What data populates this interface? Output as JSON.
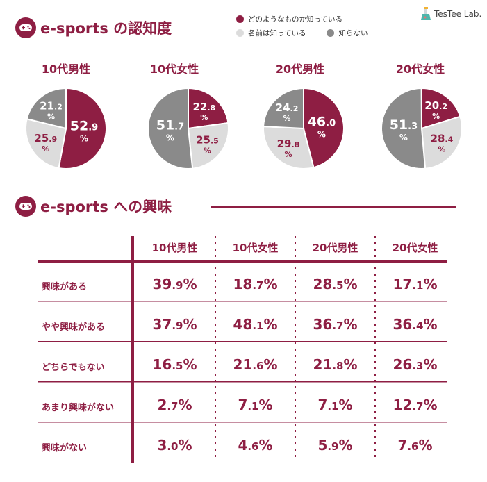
{
  "section1": {
    "title": "e-sports の認知度"
  },
  "legend": [
    {
      "label": "どのようなものか知っている",
      "color": "#8e1e43"
    },
    {
      "label": "名前は知っている",
      "color": "#dcdcdc"
    },
    {
      "label": "知らない",
      "color": "#8a8a8a"
    }
  ],
  "logo": {
    "text": "TesTee Lab."
  },
  "section2": {
    "title": "e-sports への興味"
  },
  "chart_data": [
    {
      "type": "pie",
      "title": "10代男性",
      "slices": [
        {
          "label": "どのようなものか知っている",
          "value": 52.9,
          "int": "52",
          "dec": ".9"
        },
        {
          "label": "名前は知っている",
          "value": 25.9,
          "int": "25",
          "dec": ".9"
        },
        {
          "label": "知らない",
          "value": 21.2,
          "int": "21",
          "dec": ".2"
        }
      ]
    },
    {
      "type": "pie",
      "title": "10代女性",
      "slices": [
        {
          "label": "どのようなものか知っている",
          "value": 22.8,
          "int": "22",
          "dec": ".8"
        },
        {
          "label": "名前は知っている",
          "value": 25.5,
          "int": "25",
          "dec": ".5"
        },
        {
          "label": "知らない",
          "value": 51.7,
          "int": "51",
          "dec": ".7"
        }
      ]
    },
    {
      "type": "pie",
      "title": "20代男性",
      "slices": [
        {
          "label": "どのようなものか知っている",
          "value": 46.0,
          "int": "46",
          "dec": ".0"
        },
        {
          "label": "名前は知っている",
          "value": 29.8,
          "int": "29",
          "dec": ".8"
        },
        {
          "label": "知らない",
          "value": 24.2,
          "int": "24",
          "dec": ".2"
        }
      ]
    },
    {
      "type": "pie",
      "title": "20代女性",
      "slices": [
        {
          "label": "どのようなものか知っている",
          "value": 20.2,
          "int": "20",
          "dec": ".2"
        },
        {
          "label": "名前は知っている",
          "value": 28.4,
          "int": "28",
          "dec": ".4"
        },
        {
          "label": "知らない",
          "value": 51.3,
          "int": "51",
          "dec": ".3"
        }
      ]
    },
    {
      "type": "table",
      "columns": [
        "10代男性",
        "10代女性",
        "20代男性",
        "20代女性"
      ],
      "rows": [
        {
          "label": "興味がある",
          "values": [
            "39.9%",
            "18.7%",
            "28.5%",
            "17.1%"
          ]
        },
        {
          "label": "やや興味がある",
          "values": [
            "37.9%",
            "48.1%",
            "36.7%",
            "36.4%"
          ]
        },
        {
          "label": "どちらでもない",
          "values": [
            "16.5%",
            "21.6%",
            "21.8%",
            "26.3%"
          ]
        },
        {
          "label": "あまり興味がない",
          "values": [
            "2.7%",
            "7.1%",
            "7.1%",
            "12.7%"
          ]
        },
        {
          "label": "興味がない",
          "values": [
            "3.0%",
            "4.6%",
            "5.9%",
            "7.6%"
          ]
        }
      ]
    }
  ]
}
